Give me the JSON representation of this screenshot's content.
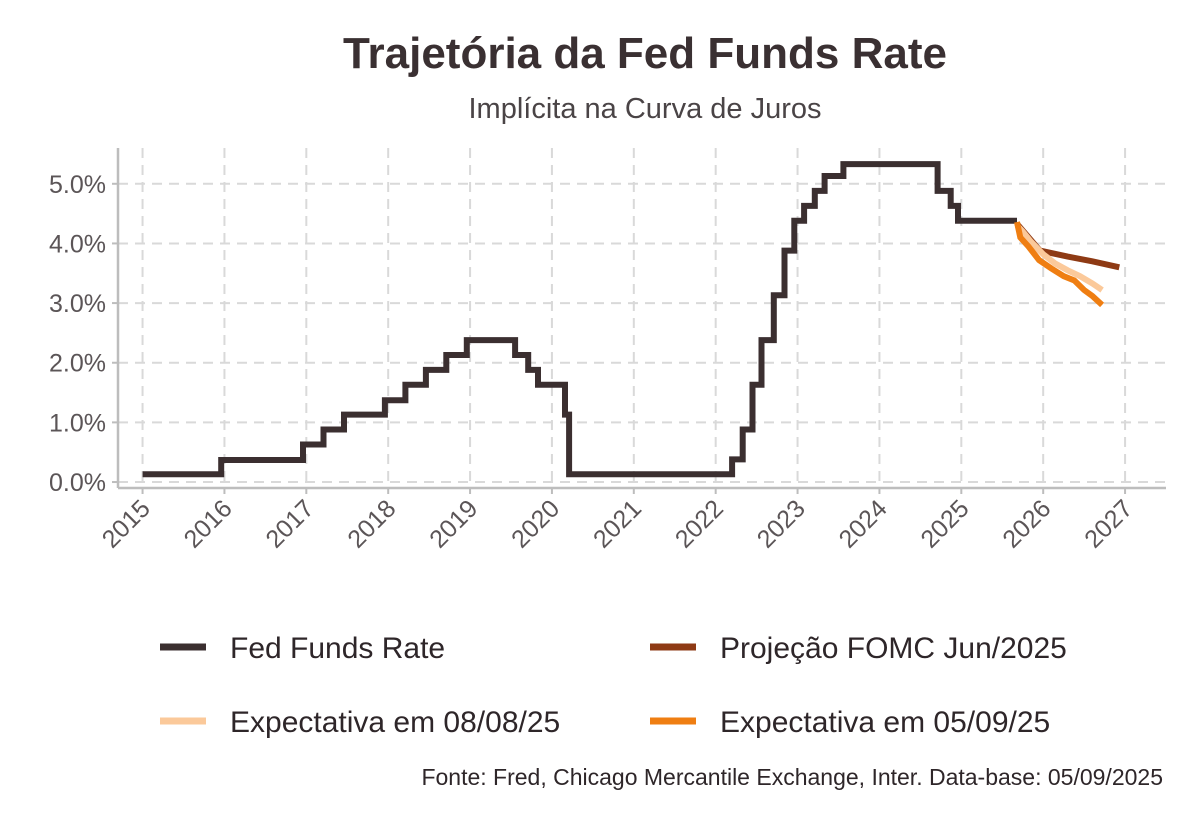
{
  "chart_data": {
    "type": "line",
    "title": "Trajetória da Fed Funds Rate",
    "subtitle": "Implícita na Curva de Juros",
    "caption": "Fonte: Fred, Chicago Mercantile Exchange, Inter. Data-base: 05/09/2025",
    "xlabel": "",
    "ylabel": "",
    "xlim": [
      2014.7,
      2027.5
    ],
    "ylim": [
      -0.1,
      5.6
    ],
    "x_ticks": [
      "2015",
      "2016",
      "2017",
      "2018",
      "2019",
      "2020",
      "2021",
      "2022",
      "2023",
      "2024",
      "2025",
      "2026",
      "2027"
    ],
    "y_ticks": [
      "0.0%",
      "1.0%",
      "2.0%",
      "3.0%",
      "4.0%",
      "5.0%"
    ],
    "grid": true,
    "legend_position": "bottom",
    "series": [
      {
        "name": "Fed Funds Rate",
        "color": "#3b2f30",
        "points": [
          [
            2015.0,
            0.13
          ],
          [
            2015.96,
            0.13
          ],
          [
            2015.96,
            0.37
          ],
          [
            2016.96,
            0.37
          ],
          [
            2016.96,
            0.63
          ],
          [
            2017.21,
            0.63
          ],
          [
            2017.21,
            0.88
          ],
          [
            2017.46,
            0.88
          ],
          [
            2017.46,
            1.13
          ],
          [
            2017.96,
            1.13
          ],
          [
            2017.96,
            1.37
          ],
          [
            2018.21,
            1.37
          ],
          [
            2018.21,
            1.63
          ],
          [
            2018.46,
            1.63
          ],
          [
            2018.46,
            1.88
          ],
          [
            2018.71,
            1.88
          ],
          [
            2018.71,
            2.13
          ],
          [
            2018.96,
            2.13
          ],
          [
            2018.96,
            2.38
          ],
          [
            2019.55,
            2.38
          ],
          [
            2019.55,
            2.13
          ],
          [
            2019.71,
            2.13
          ],
          [
            2019.71,
            1.88
          ],
          [
            2019.83,
            1.88
          ],
          [
            2019.83,
            1.63
          ],
          [
            2020.16,
            1.63
          ],
          [
            2020.16,
            1.13
          ],
          [
            2020.21,
            1.13
          ],
          [
            2020.21,
            0.13
          ],
          [
            2022.2,
            0.13
          ],
          [
            2022.2,
            0.38
          ],
          [
            2022.33,
            0.38
          ],
          [
            2022.33,
            0.88
          ],
          [
            2022.45,
            0.88
          ],
          [
            2022.45,
            1.63
          ],
          [
            2022.56,
            1.63
          ],
          [
            2022.56,
            2.38
          ],
          [
            2022.71,
            2.38
          ],
          [
            2022.71,
            3.13
          ],
          [
            2022.84,
            3.13
          ],
          [
            2022.84,
            3.88
          ],
          [
            2022.96,
            3.88
          ],
          [
            2022.96,
            4.38
          ],
          [
            2023.08,
            4.38
          ],
          [
            2023.08,
            4.63
          ],
          [
            2023.21,
            4.63
          ],
          [
            2023.21,
            4.88
          ],
          [
            2023.33,
            4.88
          ],
          [
            2023.33,
            5.13
          ],
          [
            2023.56,
            5.13
          ],
          [
            2023.56,
            5.33
          ],
          [
            2024.71,
            5.33
          ],
          [
            2024.71,
            4.88
          ],
          [
            2024.87,
            4.88
          ],
          [
            2024.87,
            4.63
          ],
          [
            2024.96,
            4.63
          ],
          [
            2024.96,
            4.38
          ],
          [
            2025.68,
            4.38
          ]
        ]
      },
      {
        "name": "Projeção FOMC Jun/2025",
        "color": "#8e3a14",
        "points": [
          [
            2025.68,
            4.33
          ],
          [
            2025.96,
            3.88
          ],
          [
            2026.3,
            3.78
          ],
          [
            2026.6,
            3.7
          ],
          [
            2026.93,
            3.6
          ]
        ]
      },
      {
        "name": "Expectativa em 08/08/25",
        "color": "#fbc99a",
        "points": [
          [
            2025.68,
            4.3
          ],
          [
            2025.75,
            4.2
          ],
          [
            2025.85,
            4.03
          ],
          [
            2026.0,
            3.82
          ],
          [
            2026.15,
            3.66
          ],
          [
            2026.3,
            3.55
          ],
          [
            2026.45,
            3.45
          ],
          [
            2026.6,
            3.33
          ],
          [
            2026.72,
            3.22
          ]
        ]
      },
      {
        "name": "Expectativa em 05/09/25",
        "color": "#ef7e12",
        "points": [
          [
            2025.68,
            4.36
          ],
          [
            2025.72,
            4.1
          ],
          [
            2025.82,
            3.95
          ],
          [
            2025.95,
            3.72
          ],
          [
            2026.1,
            3.58
          ],
          [
            2026.25,
            3.45
          ],
          [
            2026.38,
            3.38
          ],
          [
            2026.5,
            3.22
          ],
          [
            2026.6,
            3.12
          ],
          [
            2026.72,
            2.97
          ]
        ]
      }
    ]
  }
}
